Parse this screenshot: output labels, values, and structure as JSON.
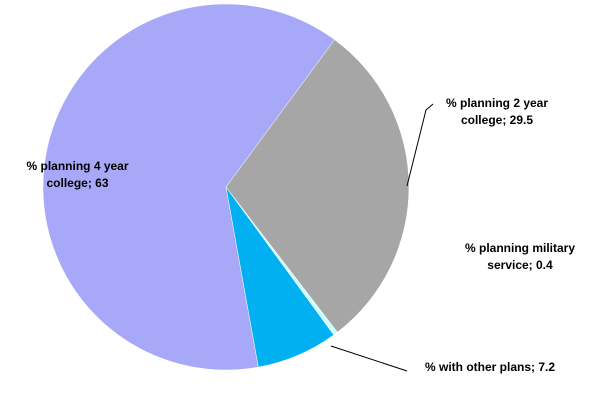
{
  "chart_data": {
    "type": "pie",
    "values": [
      29.5,
      0.4,
      7.2,
      63
    ],
    "value_labels": [
      "% planning 2 year college; 29.5",
      "% planning military service; 0.4",
      "% with other plans; 7.2",
      "% planning 4 year college; 63"
    ],
    "colors": [
      "#a6a6a6",
      "#ccffff",
      "#00b0f0",
      "#a8a8f8"
    ]
  }
}
